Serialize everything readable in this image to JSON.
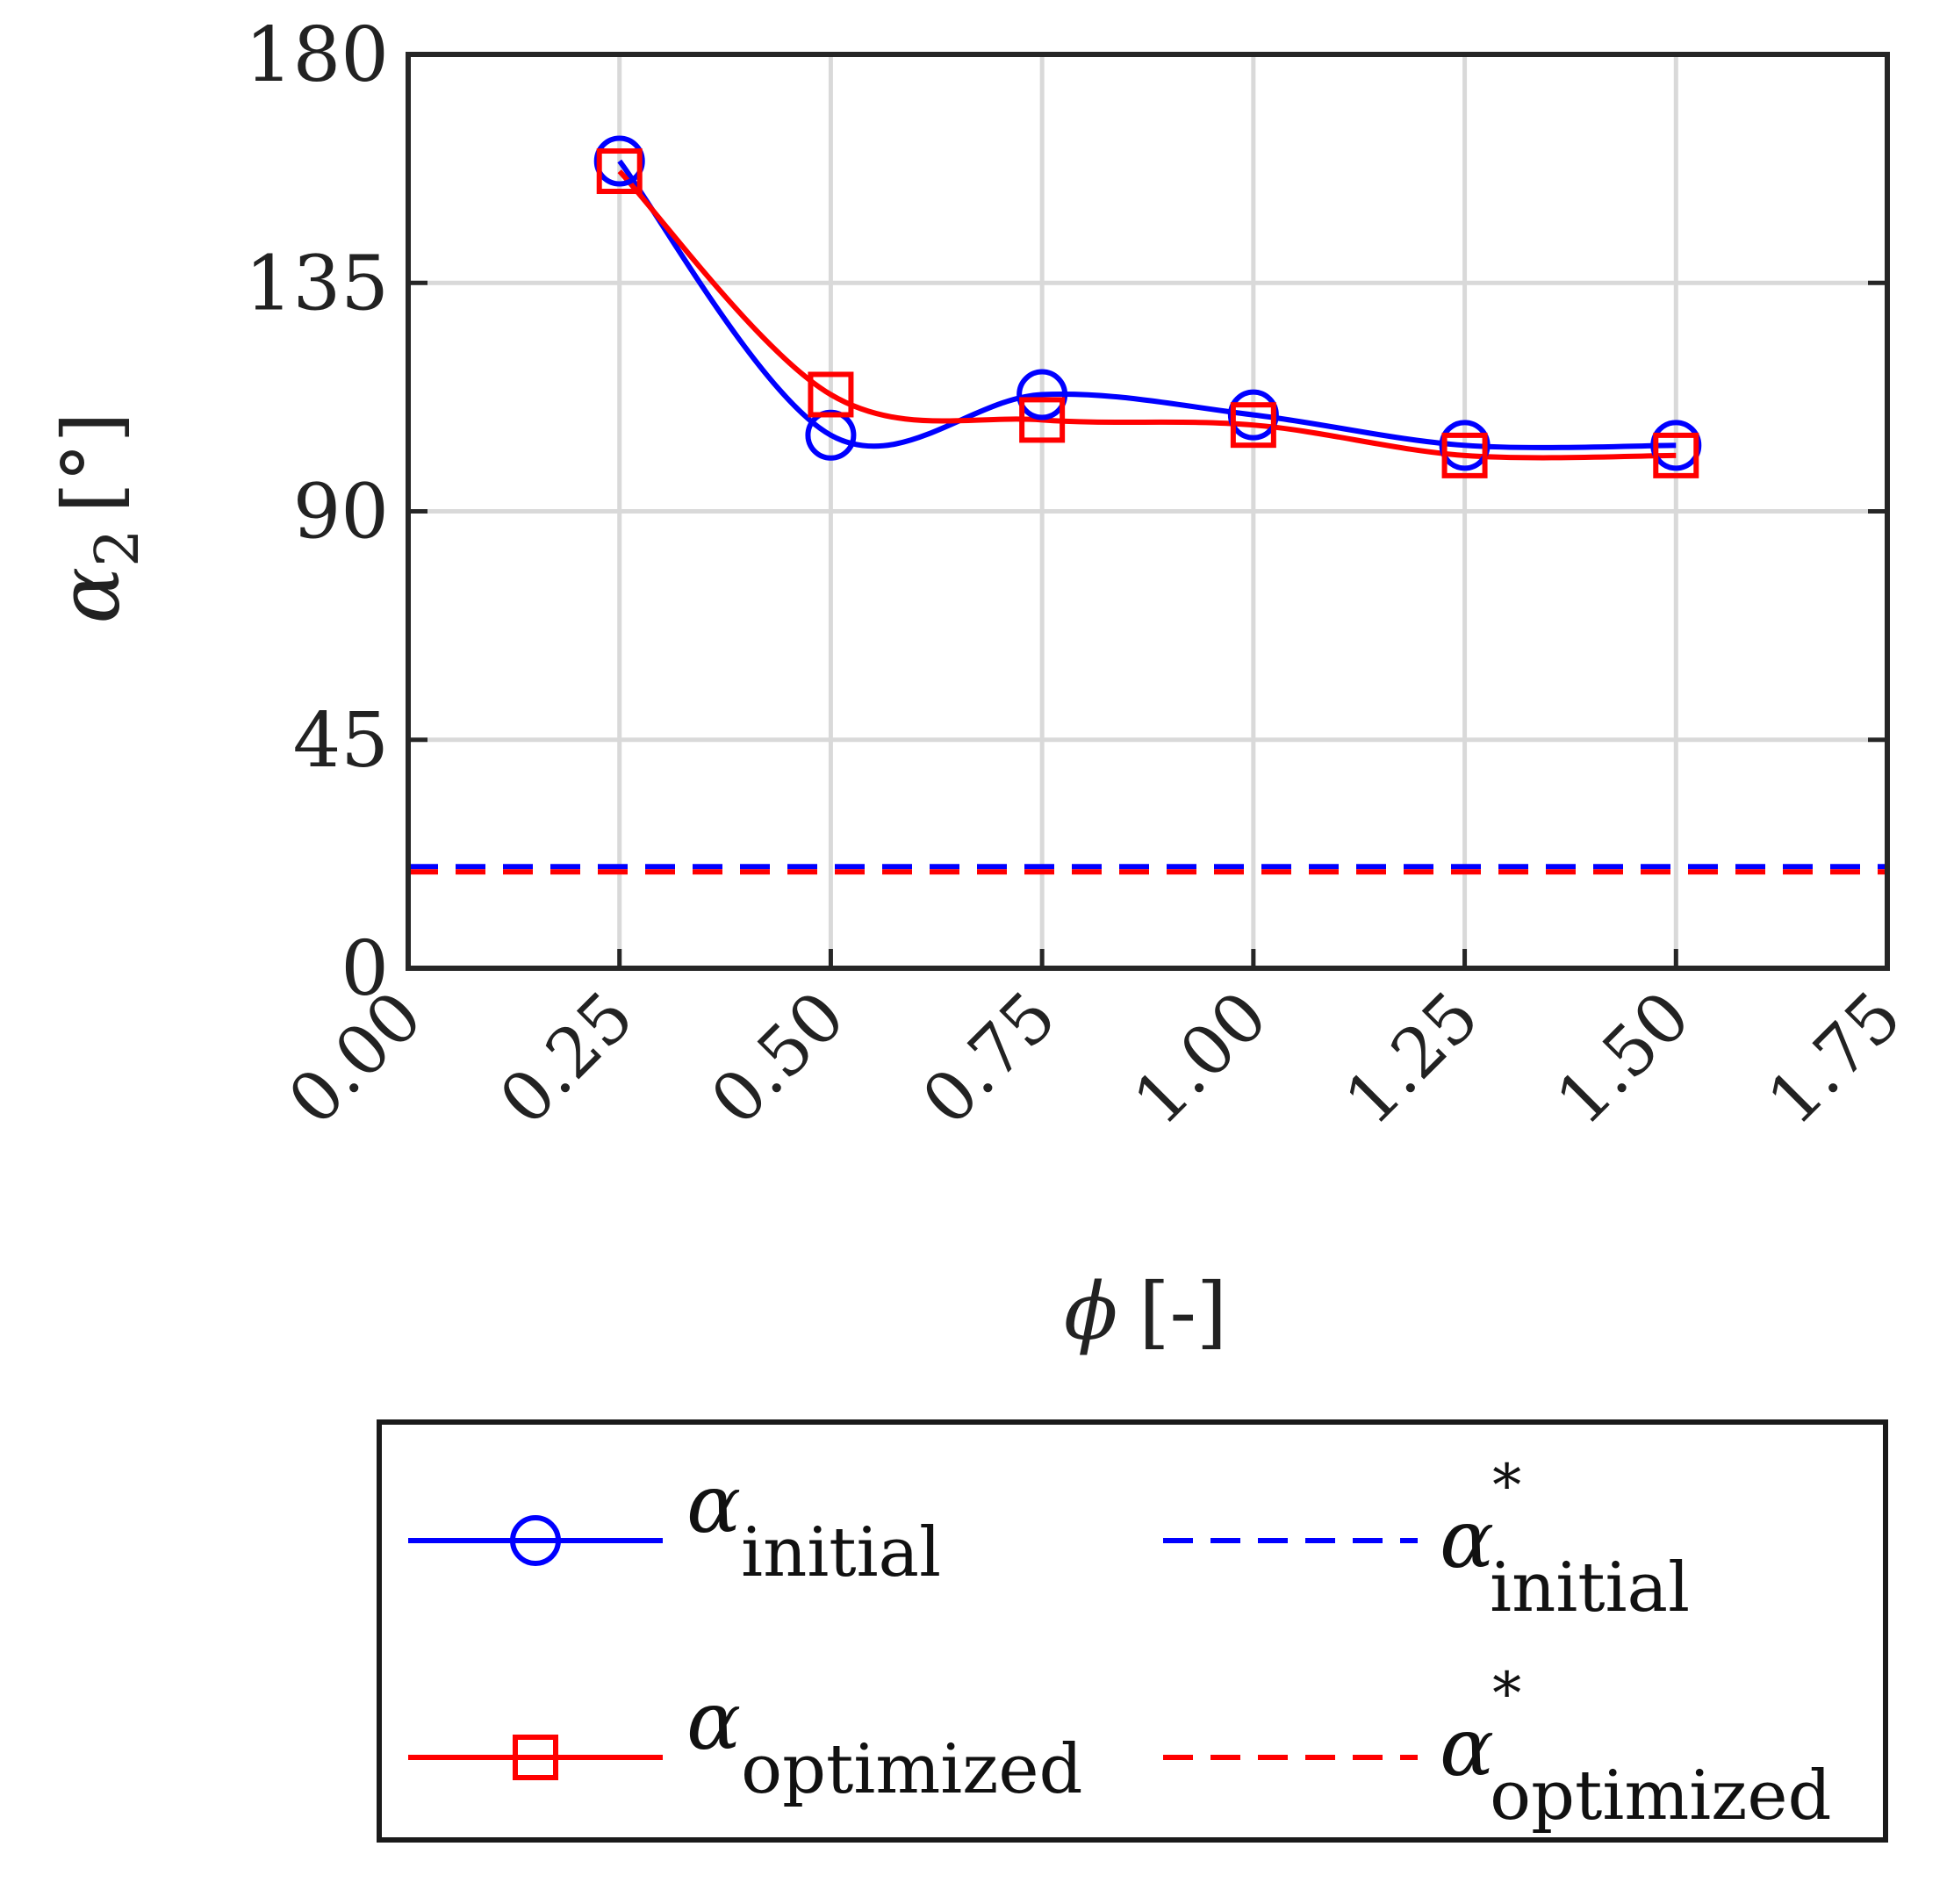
{
  "chart_data": {
    "type": "line",
    "x": [
      0.25,
      0.5,
      0.75,
      1.0,
      1.25,
      1.5
    ],
    "xticks": [
      "0.00",
      "0.25",
      "0.50",
      "0.75",
      "1.00",
      "1.25",
      "1.50",
      "1.75"
    ],
    "yticks": [
      "0",
      "45",
      "90",
      "135",
      "180"
    ],
    "xlim": [
      0,
      1.75
    ],
    "ylim": [
      0,
      180
    ],
    "grid": true,
    "xlabel": {
      "symbol": "ϕ",
      "unit": "[-]"
    },
    "ylabel": {
      "symbol": "α",
      "subscript": "2",
      "unit": "[°]"
    },
    "series": [
      {
        "name": "initial",
        "symbol": "α",
        "subscript": "initial",
        "color": "#0000ff",
        "marker": "circle",
        "style": "solid",
        "values": [
          159,
          105,
          113,
          109,
          103,
          103
        ]
      },
      {
        "name": "optimized",
        "symbol": "α",
        "subscript": "optimized",
        "color": "#ff0000",
        "marker": "square",
        "style": "solid",
        "values": [
          157,
          113,
          108,
          107,
          101,
          101
        ]
      },
      {
        "name": "initial*",
        "symbol": "α",
        "superscript": "*",
        "subscript": "initial",
        "color": "#0000ff",
        "style": "dashed",
        "constant": 19.5
      },
      {
        "name": "optimized*",
        "symbol": "α",
        "superscript": "*",
        "subscript": "optimized",
        "color": "#ff0000",
        "style": "dashed",
        "constant": 19.5
      }
    ],
    "legend": "bottom"
  }
}
